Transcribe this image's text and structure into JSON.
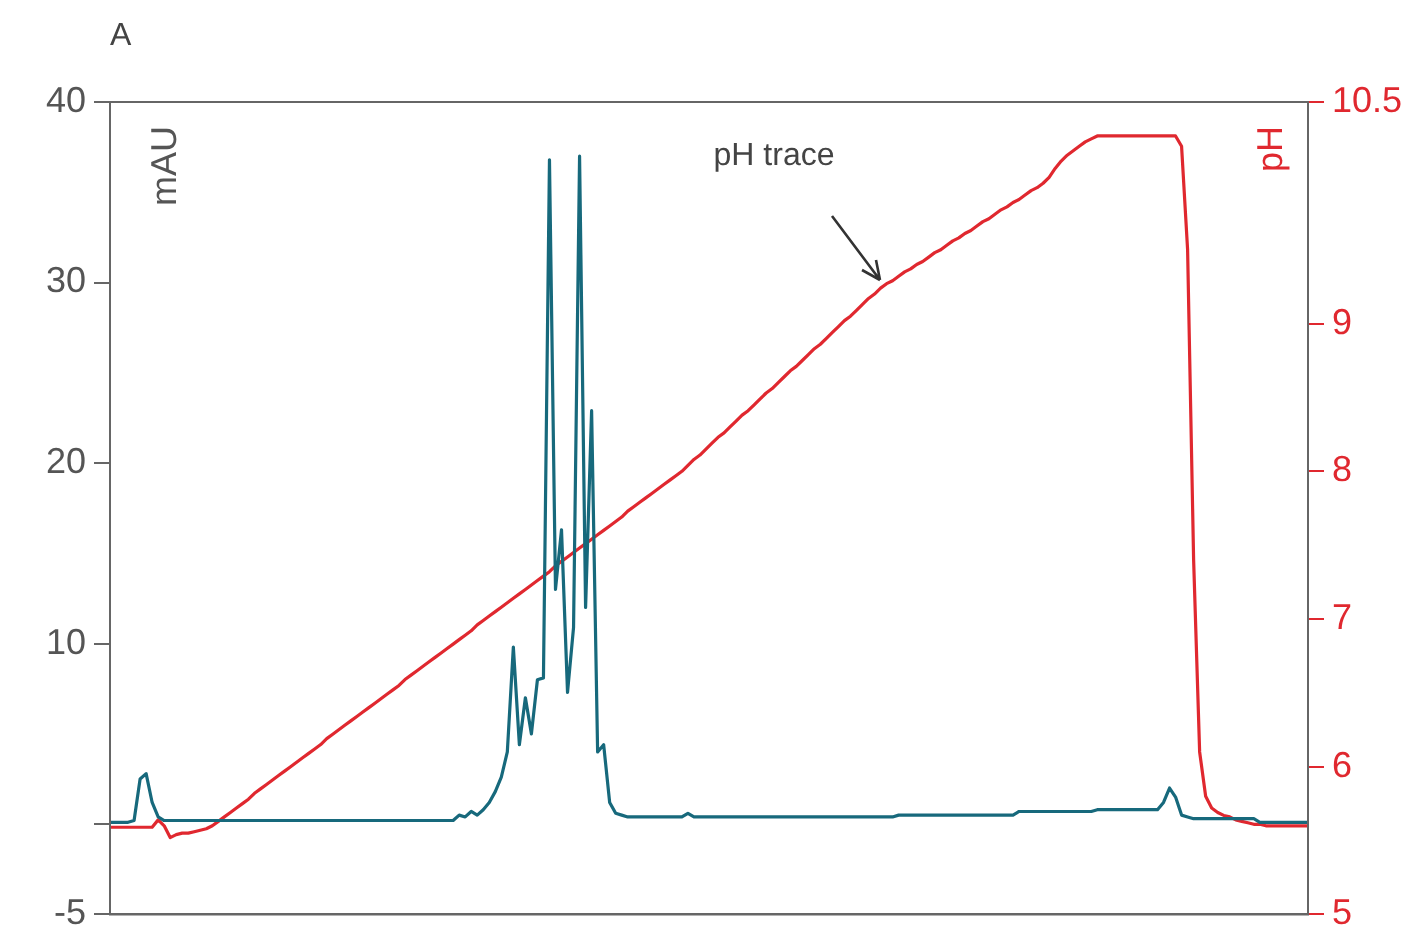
{
  "chart_data": {
    "type": "line",
    "ylabel": "mAU",
    "y2label": "pH",
    "annotations": [
      "A"
    ],
    "categories": [
      null,
      null,
      null,
      null,
      null,
      null,
      null,
      null,
      null,
      null,
      null,
      null,
      null,
      null,
      null,
      null,
      null,
      null,
      null,
      null,
      null,
      null,
      null,
      null,
      null,
      null,
      null,
      null,
      null,
      null,
      null,
      null,
      null,
      null,
      null,
      null,
      null,
      null,
      null,
      null,
      null,
      null,
      null,
      null,
      null,
      null,
      null,
      null,
      null,
      null,
      null,
      null,
      null,
      null,
      null,
      null,
      null,
      null,
      null,
      null,
      null,
      null,
      null,
      null,
      null,
      null,
      null,
      null,
      null,
      null,
      null,
      null,
      null,
      null,
      null,
      null,
      null,
      null,
      null,
      null,
      null,
      null,
      null,
      null,
      null,
      null,
      null,
      null,
      null,
      null,
      null,
      null,
      null,
      null,
      null,
      null,
      null,
      null,
      null,
      null,
      null,
      null,
      null,
      null,
      null,
      null,
      null,
      null,
      null,
      null,
      null,
      null,
      null,
      null,
      null,
      null,
      null,
      null,
      null,
      null,
      null,
      null,
      null,
      null,
      null,
      null,
      null,
      null,
      null,
      null,
      null,
      null,
      null,
      null,
      null,
      null,
      null,
      null,
      null,
      null,
      null,
      null,
      null,
      null,
      null,
      null,
      null,
      null,
      null,
      null,
      null,
      null,
      null,
      null,
      null,
      null,
      null,
      null,
      null,
      null,
      null,
      null,
      null,
      null,
      null,
      null,
      null,
      null,
      null,
      null,
      null,
      null,
      null,
      null,
      null,
      null,
      null,
      null,
      null,
      null,
      null,
      null,
      null,
      null,
      null,
      null,
      null,
      null,
      null,
      null,
      null,
      null,
      null,
      null,
      null,
      null,
      null,
      null,
      null,
      null
    ],
    "series": [
      {
        "color": "#17697c",
        "values": [
          0.1,
          0.1,
          0.1,
          0.1,
          0.2,
          2.5,
          2.8,
          1.2,
          0.4,
          0.2,
          0.2,
          0.2,
          0.2,
          0.2,
          0.2,
          0.2,
          0.2,
          0.2,
          0.2,
          0.2,
          0.2,
          0.2,
          0.2,
          0.2,
          0.2,
          0.2,
          0.2,
          0.2,
          0.2,
          0.2,
          0.2,
          0.2,
          0.2,
          0.2,
          0.2,
          0.2,
          0.2,
          0.2,
          0.2,
          0.2,
          0.2,
          0.2,
          0.2,
          0.2,
          0.2,
          0.2,
          0.2,
          0.2,
          0.2,
          0.2,
          0.2,
          0.2,
          0.2,
          0.2,
          0.2,
          0.2,
          0.2,
          0.2,
          0.5,
          0.4,
          0.7,
          0.5,
          0.8,
          1.2,
          1.8,
          2.6,
          4.0,
          9.8,
          4.4,
          7.0,
          5.0,
          8.0,
          8.1,
          36.8,
          13.0,
          16.3,
          7.3,
          10.9,
          37.0,
          12.0,
          22.9,
          4.0,
          4.4,
          1.2,
          0.6,
          0.5,
          0.4,
          0.4,
          0.4,
          0.4,
          0.4,
          0.4,
          0.4,
          0.4,
          0.4,
          0.4,
          0.6,
          0.4,
          0.4,
          0.4,
          0.4,
          0.4,
          0.4,
          0.4,
          0.4,
          0.4,
          0.4,
          0.4,
          0.4,
          0.4,
          0.4,
          0.4,
          0.4,
          0.4,
          0.4,
          0.4,
          0.4,
          0.4,
          0.4,
          0.4,
          0.4,
          0.4,
          0.4,
          0.4,
          0.4,
          0.4,
          0.4,
          0.4,
          0.4,
          0.4,
          0.4,
          0.5,
          0.5,
          0.5,
          0.5,
          0.5,
          0.5,
          0.5,
          0.5,
          0.5,
          0.5,
          0.5,
          0.5,
          0.5,
          0.5,
          0.5,
          0.5,
          0.5,
          0.5,
          0.5,
          0.5,
          0.7,
          0.7,
          0.7,
          0.7,
          0.7,
          0.7,
          0.7,
          0.7,
          0.7,
          0.7,
          0.7,
          0.7,
          0.7,
          0.8,
          0.8,
          0.8,
          0.8,
          0.8,
          0.8,
          0.8,
          0.8,
          0.8,
          0.8,
          0.8,
          1.2,
          2.0,
          1.5,
          0.5,
          0.4,
          0.3,
          0.3,
          0.3,
          0.3,
          0.3,
          0.3,
          0.3,
          0.3,
          0.3,
          0.3,
          0.3,
          0.1,
          0.1,
          0.1,
          0.1,
          0.1,
          0.1,
          0.1,
          0.1,
          0.1
        ]
      },
      {
        "name": "pH trace",
        "color": "#e0282f",
        "axis": "y2",
        "values": [
          5.59,
          5.59,
          5.59,
          5.59,
          5.59,
          5.59,
          5.59,
          5.59,
          5.64,
          5.6,
          5.52,
          5.54,
          5.55,
          5.55,
          5.56,
          5.57,
          5.58,
          5.6,
          5.63,
          5.66,
          5.69,
          5.72,
          5.75,
          5.78,
          5.82,
          5.85,
          5.88,
          5.91,
          5.94,
          5.97,
          6.0,
          6.03,
          6.06,
          6.09,
          6.12,
          6.15,
          6.19,
          6.22,
          6.25,
          6.28,
          6.31,
          6.34,
          6.37,
          6.4,
          6.43,
          6.46,
          6.49,
          6.52,
          6.55,
          6.59,
          6.62,
          6.65,
          6.68,
          6.71,
          6.74,
          6.77,
          6.8,
          6.83,
          6.86,
          6.89,
          6.92,
          6.96,
          6.99,
          7.02,
          7.05,
          7.08,
          7.11,
          7.14,
          7.17,
          7.2,
          7.23,
          7.26,
          7.29,
          7.32,
          7.36,
          7.39,
          7.42,
          7.45,
          7.48,
          7.51,
          7.54,
          7.57,
          7.6,
          7.63,
          7.66,
          7.69,
          7.73,
          7.76,
          7.79,
          7.82,
          7.85,
          7.88,
          7.91,
          7.94,
          7.97,
          8.0,
          8.04,
          8.08,
          8.11,
          8.15,
          8.19,
          8.23,
          8.26,
          8.3,
          8.34,
          8.38,
          8.41,
          8.45,
          8.49,
          8.53,
          8.56,
          8.6,
          8.64,
          8.68,
          8.71,
          8.75,
          8.79,
          8.83,
          8.86,
          8.9,
          8.94,
          8.98,
          9.02,
          9.05,
          9.09,
          9.13,
          9.17,
          9.2,
          9.24,
          9.27,
          9.29,
          9.32,
          9.35,
          9.37,
          9.4,
          9.42,
          9.45,
          9.48,
          9.5,
          9.53,
          9.56,
          9.58,
          9.61,
          9.63,
          9.66,
          9.69,
          9.71,
          9.74,
          9.77,
          9.79,
          9.82,
          9.84,
          9.87,
          9.9,
          9.92,
          9.95,
          9.99,
          10.05,
          10.1,
          10.14,
          10.17,
          10.2,
          10.23,
          10.25,
          10.27,
          10.27,
          10.27,
          10.27,
          10.27,
          10.27,
          10.27,
          10.27,
          10.27,
          10.27,
          10.27,
          10.27,
          10.27,
          10.27,
          10.2,
          9.5,
          7.4,
          6.1,
          5.8,
          5.72,
          5.69,
          5.67,
          5.66,
          5.64,
          5.63,
          5.62,
          5.61,
          5.61,
          5.6,
          5.6,
          5.6,
          5.6,
          5.6,
          5.6,
          5.6,
          5.6
        ]
      }
    ],
    "ylim": [
      -5,
      40
    ],
    "yticks": [
      -5,
      {
        "value": 0,
        "label": null
      },
      10,
      20,
      30,
      40
    ],
    "y2lim": [
      5,
      10.5
    ],
    "y2ticks": [
      5,
      6,
      7,
      8,
      9,
      10.5
    ],
    "grid": false,
    "legend": false,
    "marker": "none"
  }
}
